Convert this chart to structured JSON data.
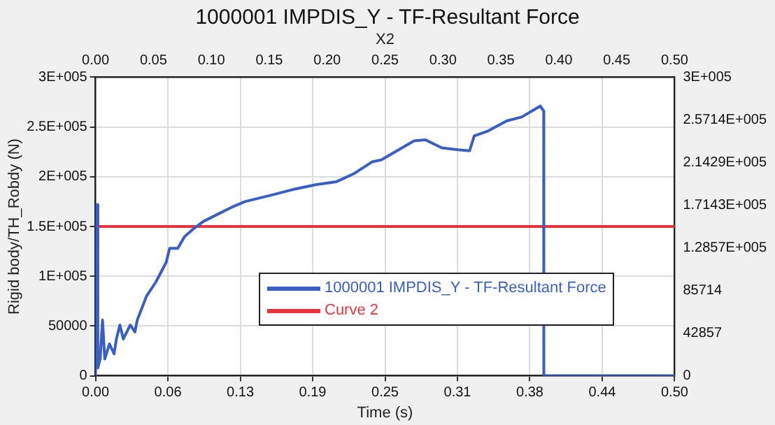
{
  "chart_data": {
    "type": "line",
    "title": "1000001 IMPDIS_Y - TF-Resultant Force",
    "xlabel": "Time (s)",
    "x2label": "X2",
    "ylabel": "Rigid body/TH_Robdy (N)",
    "series": [
      {
        "name": "1000001 IMPDIS_Y - TF-Resultant Force",
        "color": "#3a5fc4",
        "x": [
          0,
          0.001,
          0.002,
          0.004,
          0.006,
          0.008,
          0.012,
          0.016,
          0.018,
          0.021,
          0.024,
          0.03,
          0.034,
          0.036,
          0.044,
          0.052,
          0.061,
          0.064,
          0.071,
          0.077,
          0.085,
          0.093,
          0.105,
          0.117,
          0.129,
          0.15,
          0.17,
          0.19,
          0.208,
          0.223,
          0.239,
          0.247,
          0.275,
          0.285,
          0.299,
          0.313,
          0.323,
          0.327,
          0.339,
          0.355,
          0.368,
          0.384,
          0.387,
          0.3871,
          0.5
        ],
        "values": [
          0,
          172000,
          8000,
          17000,
          56000,
          17000,
          32000,
          22000,
          37000,
          51000,
          37000,
          51000,
          44000,
          56000,
          80000,
          94000,
          114000,
          128000,
          128000,
          140000,
          148000,
          155000,
          162000,
          169000,
          175000,
          181000,
          187000,
          192000,
          195000,
          203000,
          215000,
          217000,
          236000,
          237000,
          229000,
          227000,
          226000,
          241000,
          246000,
          256000,
          260000,
          271000,
          266000,
          0,
          0
        ]
      },
      {
        "name": "Curve 2",
        "color": "#e8333b",
        "x": [
          0,
          0.5
        ],
        "values": [
          150000,
          150000
        ]
      }
    ],
    "xlim": [
      0,
      0.5
    ],
    "xticks": [
      {
        "value": 0,
        "label": "0.00"
      },
      {
        "value": 0.0625,
        "label": "0.06"
      },
      {
        "value": 0.125,
        "label": "0.13"
      },
      {
        "value": 0.1875,
        "label": "0.19"
      },
      {
        "value": 0.25,
        "label": "0.25"
      },
      {
        "value": 0.3125,
        "label": "0.31"
      },
      {
        "value": 0.375,
        "label": "0.38"
      },
      {
        "value": 0.4375,
        "label": "0.44"
      },
      {
        "value": 0.5,
        "label": "0.50"
      }
    ],
    "x2lim": [
      0,
      0.5
    ],
    "x2ticks": [
      {
        "value": 0,
        "label": "0.00"
      },
      {
        "value": 0.05,
        "label": "0.05"
      },
      {
        "value": 0.1,
        "label": "0.10"
      },
      {
        "value": 0.15,
        "label": "0.15"
      },
      {
        "value": 0.2,
        "label": "0.20"
      },
      {
        "value": 0.25,
        "label": "0.25"
      },
      {
        "value": 0.3,
        "label": "0.30"
      },
      {
        "value": 0.35,
        "label": "0.35"
      },
      {
        "value": 0.4,
        "label": "0.40"
      },
      {
        "value": 0.45,
        "label": "0.45"
      },
      {
        "value": 0.5,
        "label": "0.50"
      }
    ],
    "ylim": [
      0,
      300000
    ],
    "yticks": [
      0,
      50000,
      {
        "value": 100000,
        "label": "1E+005"
      },
      {
        "value": 150000,
        "label": "1.5E+005"
      },
      {
        "value": 200000,
        "label": "2E+005"
      },
      {
        "value": 250000,
        "label": "2.5E+005"
      },
      {
        "value": 300000,
        "label": "3E+005"
      }
    ],
    "y2lim": [
      0,
      300000
    ],
    "y2ticks": [
      0,
      {
        "value": 42857.14,
        "label": "42857"
      },
      {
        "value": 85714.29,
        "label": "85714"
      },
      {
        "value": 128571.43,
        "label": "1.2857E+005"
      },
      {
        "value": 171428.57,
        "label": "1.7143E+005"
      },
      {
        "value": 214285.71,
        "label": "2.1429E+005"
      },
      {
        "value": 257142.86,
        "label": "2.5714E+005"
      },
      {
        "value": 300000,
        "label": "3E+005"
      }
    ],
    "grid": true,
    "legend": "bottom right",
    "marker": "none",
    "line_style": "solid"
  }
}
